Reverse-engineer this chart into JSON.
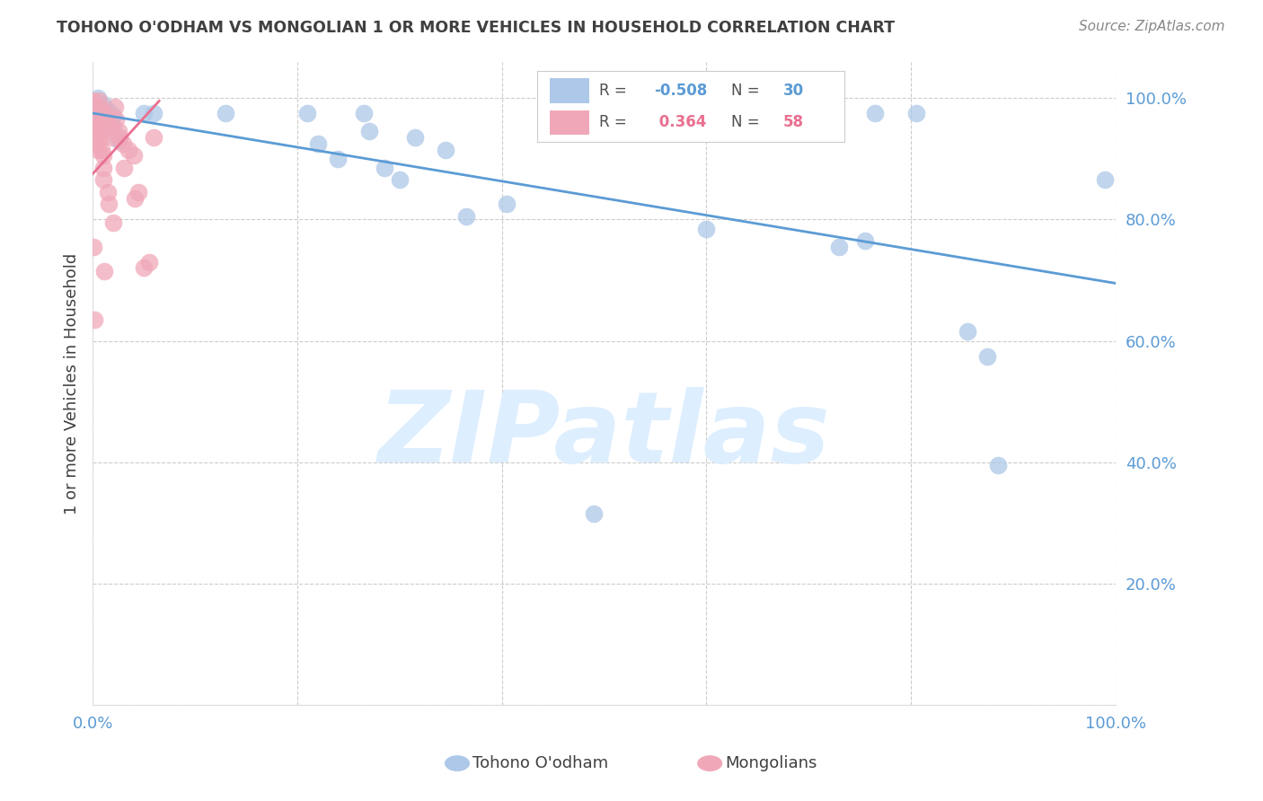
{
  "title": "TOHONO O'ODHAM VS MONGOLIAN 1 OR MORE VEHICLES IN HOUSEHOLD CORRELATION CHART",
  "source": "Source: ZipAtlas.com",
  "ylabel": "1 or more Vehicles in Household",
  "watermark": "ZIPatlas",
  "blue_points": [
    [
      0.005,
      1.0
    ],
    [
      0.01,
      0.99
    ],
    [
      0.015,
      0.98
    ],
    [
      0.02,
      0.97
    ],
    [
      0.02,
      0.95
    ],
    [
      0.025,
      0.93
    ],
    [
      0.05,
      0.975
    ],
    [
      0.06,
      0.975
    ],
    [
      0.13,
      0.975
    ],
    [
      0.21,
      0.975
    ],
    [
      0.22,
      0.925
    ],
    [
      0.24,
      0.9
    ],
    [
      0.265,
      0.975
    ],
    [
      0.27,
      0.945
    ],
    [
      0.285,
      0.885
    ],
    [
      0.3,
      0.865
    ],
    [
      0.315,
      0.935
    ],
    [
      0.345,
      0.915
    ],
    [
      0.365,
      0.805
    ],
    [
      0.405,
      0.825
    ],
    [
      0.49,
      0.315
    ],
    [
      0.6,
      0.785
    ],
    [
      0.73,
      0.755
    ],
    [
      0.755,
      0.765
    ],
    [
      0.765,
      0.975
    ],
    [
      0.805,
      0.975
    ],
    [
      0.855,
      0.615
    ],
    [
      0.875,
      0.575
    ],
    [
      0.885,
      0.395
    ],
    [
      0.99,
      0.865
    ]
  ],
  "pink_points": [
    [
      0.0,
      0.995
    ],
    [
      0.0,
      0.985
    ],
    [
      0.002,
      0.975
    ],
    [
      0.002,
      0.965
    ],
    [
      0.003,
      0.955
    ],
    [
      0.003,
      0.945
    ],
    [
      0.004,
      0.935
    ],
    [
      0.004,
      0.925
    ],
    [
      0.005,
      0.915
    ],
    [
      0.006,
      0.995
    ],
    [
      0.007,
      0.985
    ],
    [
      0.007,
      0.975
    ],
    [
      0.008,
      0.965
    ],
    [
      0.008,
      0.945
    ],
    [
      0.009,
      0.935
    ],
    [
      0.009,
      0.915
    ],
    [
      0.01,
      0.905
    ],
    [
      0.01,
      0.885
    ],
    [
      0.01,
      0.865
    ],
    [
      0.012,
      0.975
    ],
    [
      0.013,
      0.965
    ],
    [
      0.014,
      0.955
    ],
    [
      0.015,
      0.845
    ],
    [
      0.016,
      0.825
    ],
    [
      0.018,
      0.955
    ],
    [
      0.019,
      0.935
    ],
    [
      0.02,
      0.795
    ],
    [
      0.022,
      0.985
    ],
    [
      0.023,
      0.965
    ],
    [
      0.025,
      0.945
    ],
    [
      0.026,
      0.935
    ],
    [
      0.03,
      0.925
    ],
    [
      0.031,
      0.885
    ],
    [
      0.035,
      0.915
    ],
    [
      0.04,
      0.905
    ],
    [
      0.041,
      0.835
    ],
    [
      0.045,
      0.845
    ],
    [
      0.05,
      0.72
    ],
    [
      0.055,
      0.73
    ],
    [
      0.06,
      0.935
    ],
    [
      0.001,
      0.755
    ],
    [
      0.011,
      0.715
    ],
    [
      0.002,
      0.635
    ]
  ],
  "blue_line_x": [
    0.0,
    1.0
  ],
  "blue_line_y": [
    0.975,
    0.695
  ],
  "pink_line_x": [
    0.0,
    0.065
  ],
  "pink_line_y": [
    0.875,
    0.995
  ],
  "xlim": [
    0.0,
    1.0
  ],
  "ylim": [
    0.0,
    1.06
  ],
  "yticks": [
    0.0,
    0.2,
    0.4,
    0.6,
    0.8,
    1.0
  ],
  "ytick_labels_right": [
    "",
    "20.0%",
    "40.0%",
    "60.0%",
    "80.0%",
    "100.0%"
  ],
  "xticks": [
    0.0,
    0.2,
    0.4,
    0.6,
    0.8,
    1.0
  ],
  "xtick_labels": [
    "0.0%",
    "",
    "",
    "",
    "",
    "100.0%"
  ],
  "grid_color": "#cccccc",
  "background_color": "#ffffff",
  "blue_color": "#5b9bd5",
  "pink_color": "#e87090",
  "blue_scatter_color": "#adc8e8",
  "pink_scatter_color": "#f0a8b8",
  "title_color": "#404040",
  "axis_label_color": "#5b9bd5",
  "watermark_color": "#ddeeff"
}
